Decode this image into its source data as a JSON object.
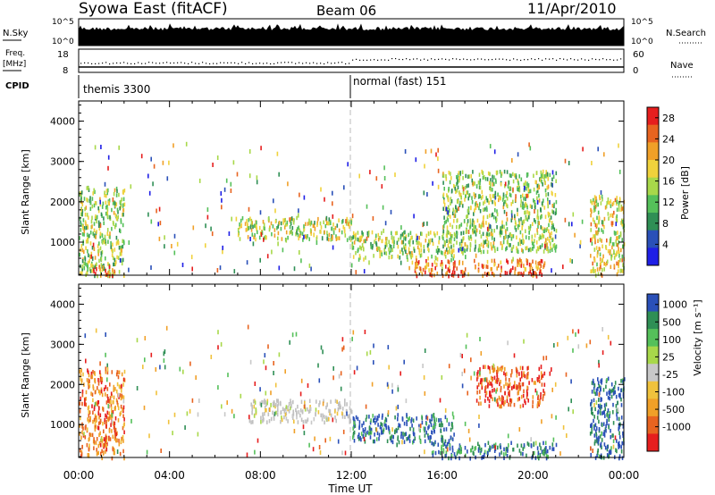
{
  "header": {
    "station": "Syowa East (fitACF)",
    "beam": "Beam 06",
    "date": "11/Apr/2010"
  },
  "top_panels": {
    "nsky_label": "N.Sky",
    "nsearch_label": "N.Search",
    "left_tick_top": "10^5",
    "left_tick_bottom": "10^0",
    "right_tick_top": "10^5",
    "right_tick_bottom": "10^0",
    "freq_label": "Freq.",
    "freq_unit": "[MHz]",
    "freq_tick_top": "18",
    "freq_tick_bottom": "8",
    "nave_tick_top": "60",
    "nave_tick_bottom": "0",
    "nave_label": "Nave",
    "cpid_label": "CPID",
    "cpid_1": "themis 3300",
    "cpid_2": "normal (fast) 151"
  },
  "colors": {
    "power_scale": [
      "#1f1fe6",
      "#2a50b8",
      "#2f8f55",
      "#55c05a",
      "#a8d84a",
      "#f0d23c",
      "#f0a028",
      "#e86420",
      "#e61e1e"
    ],
    "velocity_scale": [
      "#e61e1e",
      "#e86420",
      "#f0a028",
      "#f0c23c",
      "#c8c8c8",
      "#a8d84a",
      "#55c05a",
      "#2f8f55",
      "#2a50b8"
    ],
    "ground_scatter": "#c0c0c0"
  },
  "chart_data": [
    {
      "type": "heatmap",
      "panel": "power",
      "xlabel": "",
      "ylabel": "Slant Range [km]",
      "x_ticks": [
        "00:00",
        "04:00",
        "08:00",
        "12:00",
        "16:00",
        "20:00",
        "00:00"
      ],
      "xlim_hours": [
        0,
        24
      ],
      "ylim_km": [
        180,
        4500
      ],
      "y_ticks": [
        1000,
        2000,
        3000,
        4000
      ],
      "colorbar": {
        "label": "Power [dB]",
        "ticks": [
          4,
          8,
          12,
          16,
          20,
          24,
          28
        ],
        "range": [
          0,
          30
        ]
      },
      "scatter_regions": [
        {
          "t_start": 0.0,
          "t_end": 2.0,
          "range_km": [
            200,
            2400
          ],
          "dominant_db": 14
        },
        {
          "t_start": 0.6,
          "t_end": 1.6,
          "range_km": [
            200,
            450
          ],
          "dominant_db": 28
        },
        {
          "t_start": 7.0,
          "t_end": 12.0,
          "range_km": [
            1100,
            1650
          ],
          "dominant_db": 16
        },
        {
          "t_start": 12.0,
          "t_end": 16.5,
          "range_km": [
            600,
            1300
          ],
          "dominant_db": 14
        },
        {
          "t_start": 14.5,
          "t_end": 20.5,
          "range_km": [
            200,
            600
          ],
          "dominant_db": 26
        },
        {
          "t_start": 16.0,
          "t_end": 21.0,
          "range_km": [
            800,
            2800
          ],
          "dominant_db": 14
        },
        {
          "t_start": 22.5,
          "t_end": 24.0,
          "range_km": [
            200,
            2200
          ],
          "dominant_db": 18
        }
      ]
    },
    {
      "type": "heatmap",
      "panel": "velocity",
      "xlabel": "Time UT",
      "ylabel": "Slant Range [km]",
      "x_ticks": [
        "00:00",
        "04:00",
        "08:00",
        "12:00",
        "16:00",
        "20:00",
        "00:00"
      ],
      "xlim_hours": [
        0,
        24
      ],
      "ylim_km": [
        180,
        4500
      ],
      "y_ticks": [
        1000,
        2000,
        3000,
        4000
      ],
      "colorbar": {
        "label": "Velocity [m s⁻¹]",
        "ticks": [
          1000,
          500,
          100,
          25,
          -25,
          -100,
          -500,
          -1000
        ]
      },
      "scatter_regions": [
        {
          "t_start": 0.0,
          "t_end": 2.0,
          "range_km": [
            200,
            2400
          ],
          "dominant_velocity": -100
        },
        {
          "t_start": 7.5,
          "t_end": 12.0,
          "range_km": [
            1100,
            1650
          ],
          "dominant_velocity": 0,
          "ground_scatter": true
        },
        {
          "t_start": 12.0,
          "t_end": 16.5,
          "range_km": [
            600,
            1300
          ],
          "dominant_velocity": 500
        },
        {
          "t_start": 15.5,
          "t_end": 21.0,
          "range_km": [
            200,
            600
          ],
          "dominant_velocity": 300
        },
        {
          "t_start": 17.5,
          "t_end": 20.5,
          "range_km": [
            1500,
            2500
          ],
          "dominant_velocity": -300
        },
        {
          "t_start": 22.5,
          "t_end": 24.0,
          "range_km": [
            200,
            2200
          ],
          "dominant_velocity": 800
        }
      ]
    }
  ]
}
